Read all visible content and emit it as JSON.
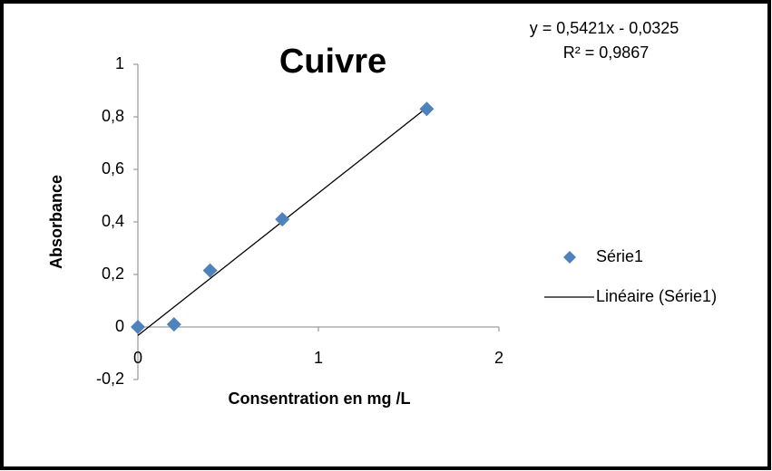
{
  "chart_data": {
    "type": "scatter",
    "title": "Cuivre",
    "xlabel": "Consentration en mg /L",
    "ylabel": "Absorbance",
    "series": [
      {
        "name": "Série1",
        "color": "#4f81bd",
        "x": [
          0,
          0.2,
          0.4,
          0.8,
          1.6
        ],
        "values": [
          0,
          0.01,
          0.215,
          0.41,
          0.83
        ]
      }
    ],
    "trendline": {
      "name": "Linéaire (Série1)",
      "color": "#000000",
      "slope": 0.5421,
      "intercept": -0.0325,
      "equation": "y = 0,5421x - 0,0325",
      "r2_label": "R² = 0,9867",
      "r2": 0.9867
    },
    "xlim": [
      0,
      2
    ],
    "xticks": [
      0,
      1,
      2
    ],
    "ylim": [
      -0.2,
      1
    ],
    "yticks": [
      {
        "value": -0.2,
        "label": "-0,2"
      },
      0,
      {
        "value": 0.2,
        "label": "0,2"
      },
      {
        "value": 0.4,
        "label": "0,4"
      },
      {
        "value": 0.6,
        "label": "0,6"
      },
      {
        "value": 0.8,
        "label": "0,8"
      },
      1
    ],
    "grid": false,
    "legend": "right"
  }
}
